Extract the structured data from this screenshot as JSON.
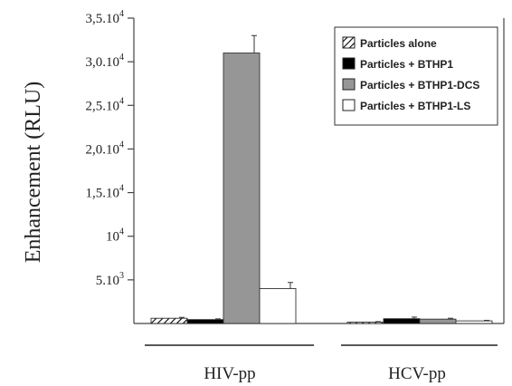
{
  "chart_data": {
    "type": "bar",
    "ylabel": "Enhancement (RLU)",
    "xlabel": "",
    "ylim": [
      0,
      35000
    ],
    "yticks": [
      {
        "value": 5000,
        "base": "5.10",
        "exp": "3"
      },
      {
        "value": 10000,
        "base": "10",
        "exp": "4"
      },
      {
        "value": 15000,
        "base": "1,5.10",
        "exp": "4"
      },
      {
        "value": 20000,
        "base": "2,0.10",
        "exp": "4"
      },
      {
        "value": 25000,
        "base": "2,5.10",
        "exp": "4"
      },
      {
        "value": 30000,
        "base": "3,0.10",
        "exp": "4"
      },
      {
        "value": 35000,
        "base": "3,5.10",
        "exp": "4"
      }
    ],
    "categories": [
      "HIV-pp",
      "HCV-pp"
    ],
    "series": [
      {
        "name": "Particles alone",
        "values": [
          600,
          150
        ],
        "errors": [
          100,
          60
        ],
        "color": "#c4c4c4",
        "hatched": true
      },
      {
        "name": "Particles + BTHP1",
        "values": [
          450,
          550
        ],
        "errors": [
          80,
          180
        ],
        "color": "#000000",
        "hatched": false
      },
      {
        "name": "Particles + BTHP1-DCS",
        "values": [
          31000,
          500
        ],
        "errors": [
          2000,
          100
        ],
        "color": "#969696",
        "hatched": false
      },
      {
        "name": "Particles + BTHP1-LS",
        "values": [
          4000,
          300
        ],
        "errors": [
          700,
          60
        ],
        "color": "#ffffff",
        "hatched": false
      }
    ],
    "legend_position": "top-right",
    "grid": false
  }
}
